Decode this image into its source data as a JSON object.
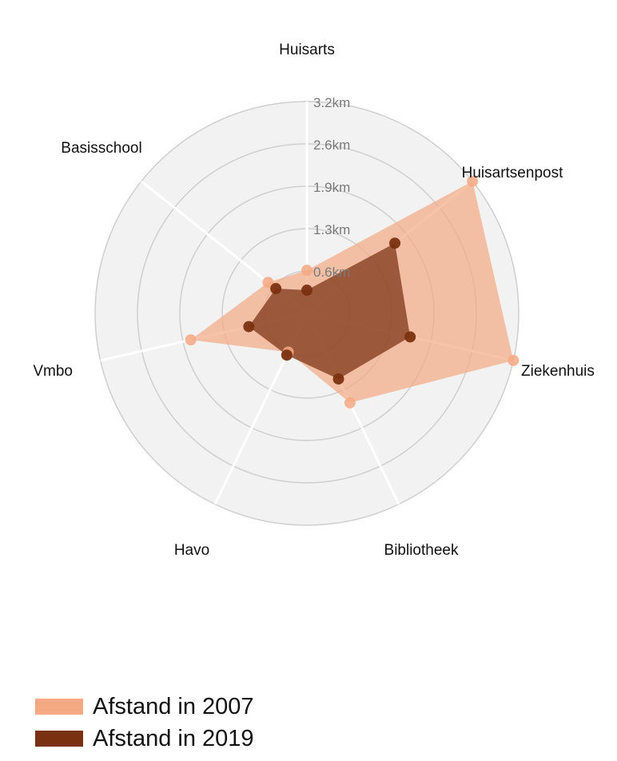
{
  "chart_data": {
    "type": "radar",
    "axes": [
      "Huisarts",
      "Huisartsenpost",
      "Ziekenhuis",
      "Bibliotheek",
      "Havo",
      "Vmbo",
      "Basisschool"
    ],
    "ticks": [
      "0.6km",
      "1.3km",
      "1.9km",
      "2.6km",
      "3.2km"
    ],
    "tick_values": [
      0.64,
      1.28,
      1.92,
      2.56,
      3.2
    ],
    "range": [
      0,
      3.2
    ],
    "series": [
      {
        "name": "Afstand in 2007",
        "values": [
          0.65,
          3.2,
          3.2,
          1.5,
          0.65,
          1.8,
          0.75
        ],
        "color": "#f4a983"
      },
      {
        "name": "Afstand in 2019",
        "values": [
          0.35,
          1.7,
          1.6,
          1.1,
          0.7,
          0.9,
          0.6
        ],
        "color": "#7a3110"
      }
    ],
    "legend_position": "bottom-left"
  }
}
